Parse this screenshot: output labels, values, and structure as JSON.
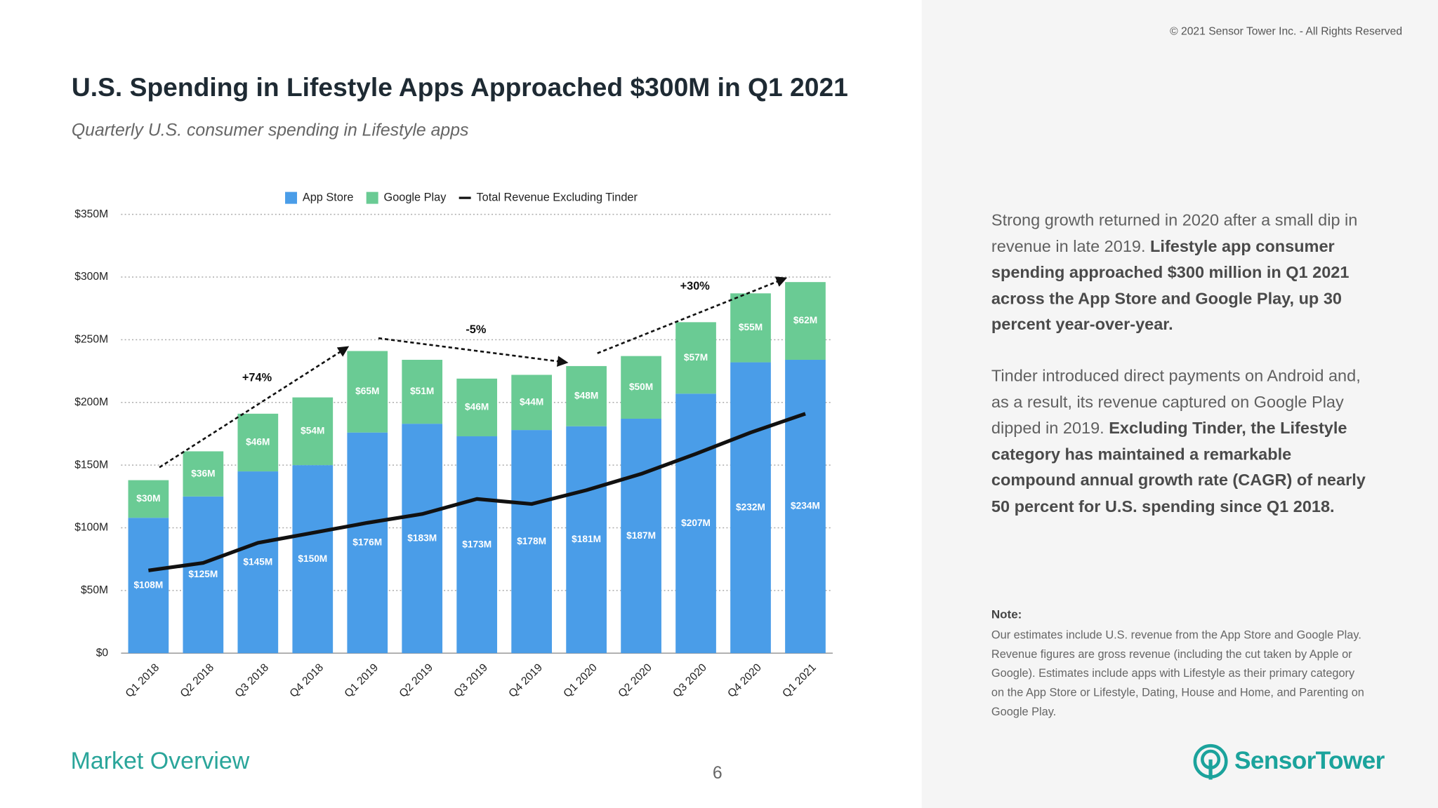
{
  "copyright": "© 2021 Sensor Tower Inc. - All Rights Reserved",
  "chart_data": {
    "type": "bar",
    "stacked": true,
    "title": "U.S. Spending in Lifestyle Apps Approached $300M in Q1 2021",
    "subtitle": "Quarterly U.S. consumer spending in Lifestyle apps",
    "categories": [
      "Q1 2018",
      "Q2 2018",
      "Q3 2018",
      "Q4 2018",
      "Q1 2019",
      "Q2 2019",
      "Q3 2019",
      "Q4 2019",
      "Q1 2020",
      "Q2 2020",
      "Q3 2020",
      "Q4 2020",
      "Q1 2021"
    ],
    "series": [
      {
        "name": "App Store",
        "type": "bar",
        "color": "#4a9de8",
        "values": [
          108,
          125,
          145,
          150,
          176,
          183,
          173,
          178,
          181,
          187,
          207,
          232,
          234
        ],
        "value_labels": [
          "$108M",
          "$125M",
          "$145M",
          "$150M",
          "$176M",
          "$183M",
          "$173M",
          "$178M",
          "$181M",
          "$187M",
          "$207M",
          "$232M",
          "$234M"
        ]
      },
      {
        "name": "Google Play",
        "type": "bar",
        "color": "#6acb94",
        "values": [
          30,
          36,
          46,
          54,
          65,
          51,
          46,
          44,
          48,
          50,
          57,
          55,
          62
        ],
        "value_labels": [
          "$30M",
          "$36M",
          "$46M",
          "$54M",
          "$65M",
          "$51M",
          "$46M",
          "$44M",
          "$48M",
          "$50M",
          "$57M",
          "$55M",
          "$62M"
        ]
      },
      {
        "name": "Total Revenue Excluding Tinder",
        "type": "line",
        "color": "#111111",
        "values": [
          66,
          72,
          88,
          96,
          104,
          111,
          123,
          119,
          130,
          143,
          159,
          176,
          191
        ]
      }
    ],
    "ylim": [
      0,
      350
    ],
    "yticks": [
      {
        "value": 0,
        "label": "$0"
      },
      {
        "value": 50,
        "label": "$50M"
      },
      {
        "value": 100,
        "label": "$100M"
      },
      {
        "value": 150,
        "label": "$150M"
      },
      {
        "value": 200,
        "label": "$200M"
      },
      {
        "value": 250,
        "label": "$250M"
      },
      {
        "value": 300,
        "label": "$300M"
      },
      {
        "value": 350,
        "label": "$350M"
      }
    ],
    "grid": true,
    "legend": "top",
    "annotations": [
      "+74%",
      "-5%",
      "+30%"
    ]
  },
  "panel": {
    "paragraphs": [
      [
        {
          "text": "Strong growth returned in 2020 after a small dip in revenue in late 2019. ",
          "bold": false
        },
        {
          "text": "Lifestyle app consumer spending approached $300 million in Q1 2021 across the App Store and Google Play, up 30 percent year-over-year.",
          "bold": true
        }
      ],
      [
        {
          "text": "Tinder introduced direct payments on Android and, as a result, its revenue captured on Google Play dipped in 2019. ",
          "bold": false
        },
        {
          "text": "Excluding Tinder, the Lifestyle category has maintained a remarkable compound annual growth rate (CAGR) of nearly 50 percent for U.S. spending since Q1 2018.",
          "bold": true
        }
      ]
    ],
    "note_heading": "Note:",
    "note": "Our estimates include U.S. revenue from the App Store and Google Play. Revenue figures are gross revenue (including the cut taken by Apple or Google). Estimates include apps with Lifestyle as their primary category on the App Store or Lifestyle, Dating, House and Home, and Parenting on Google Play."
  },
  "footer": "Market Overview",
  "page_number": "6",
  "logo": "SensorTower"
}
